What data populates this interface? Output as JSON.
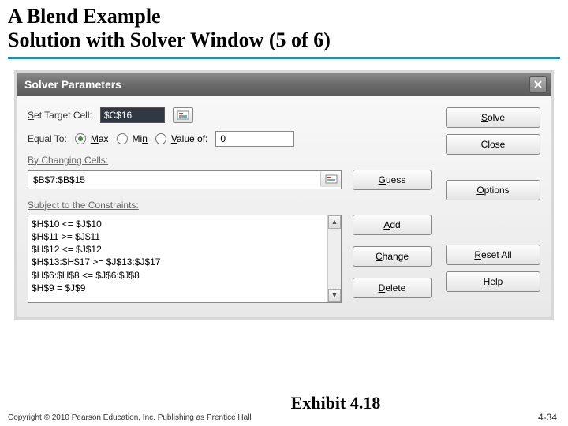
{
  "slide": {
    "title_line1": "A Blend Example",
    "title_line2": "Solution with Solver Window (5 of 6)",
    "copyright": "Copyright © 2010 Pearson Education, Inc. Publishing as Prentice Hall",
    "exhibit": "Exhibit 4.18",
    "page_number": "4-34",
    "accent_color": "#2a8aa8"
  },
  "window": {
    "title": "Solver Parameters"
  },
  "solver": {
    "set_target_label": "Set Target Cell:",
    "target_cell": "$C$16",
    "equal_to_label": "Equal To:",
    "radio_max": "Max",
    "radio_min": "Min",
    "radio_value_of": "Value of:",
    "value_of_value": "0",
    "selected_radio": "max",
    "changing_label": "By Changing Cells:",
    "changing_cells": "$B$7:$B$15",
    "constraints_label": "Subject to the Constraints:",
    "constraints": [
      "$H$10 <= $J$10",
      "$H$11 >= $J$11",
      "$H$12 <= $J$12",
      "$H$13:$H$17 >= $J$13:$J$17",
      "$H$6:$H$8 <= $J$6:$J$8",
      "$H$9 = $J$9"
    ]
  },
  "buttons": {
    "solve": "Solve",
    "close": "Close",
    "guess": "Guess",
    "options": "Options",
    "add": "Add",
    "change": "Change",
    "delete": "Delete",
    "reset_all": "Reset All",
    "help": "Help"
  }
}
